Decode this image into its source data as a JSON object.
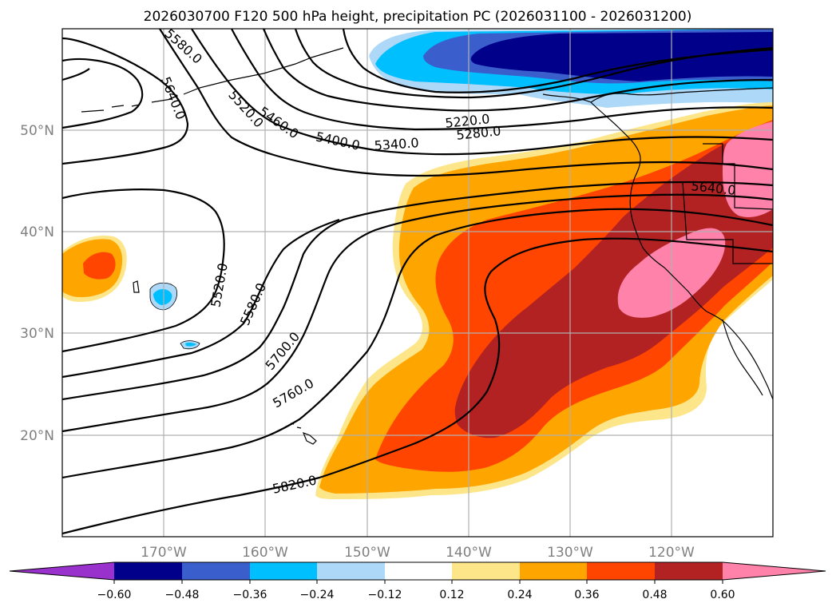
{
  "title": "2026030700 F120 500 hPa height, precipitation PC (2026031100 - 2026031200)",
  "lat_labels": [
    "50°N",
    "40°N",
    "30°N",
    "20°N"
  ],
  "lon_labels": [
    "170°W",
    "160°W",
    "150°W",
    "140°W",
    "130°W",
    "120°W"
  ],
  "contour_labels": [
    "5580.0",
    "5640.0",
    "5520.0",
    "5460.0",
    "5400.0",
    "5340.0",
    "5220.0",
    "5280.0",
    "5640.0",
    "5520.0",
    "5580.0",
    "5700.0",
    "5760.0",
    "5820.0"
  ],
  "colorbar": {
    "ticks": [
      "−0.60",
      "−0.48",
      "−0.36",
      "−0.24",
      "−0.12",
      "0.12",
      "0.24",
      "0.36",
      "0.48",
      "0.60"
    ],
    "colors": [
      "#9932cc",
      "#00008b",
      "#3a5fcd",
      "#00bfff",
      "#add8f7",
      "#ffffff",
      "#fde68a",
      "#ffa500",
      "#ff4500",
      "#b22222",
      "#ff82ab"
    ]
  }
}
